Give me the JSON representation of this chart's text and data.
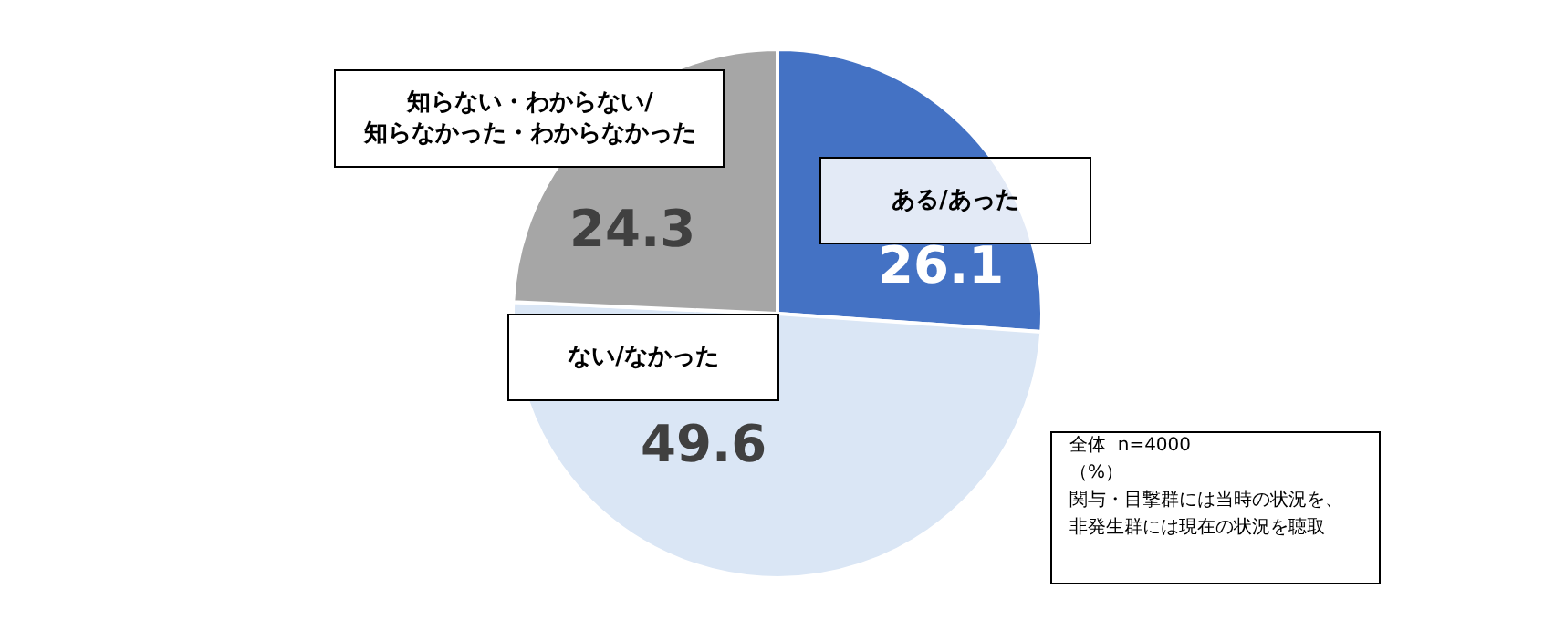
{
  "chart_data": {
    "type": "pie",
    "categories": [
      "ある/あった",
      "ない/なかった",
      "知らない・わからない/\n知らなかった・わからなかった"
    ],
    "values": [
      26.1,
      49.6,
      24.3
    ],
    "colors": [
      "#4472c4",
      "#dae6f5",
      "#a6a6a6"
    ],
    "data_labels": true,
    "legend": false,
    "annotations": [
      "全体  n=4000",
      "（%）",
      "関与・目撃群には当時の状況を、",
      "非発生群には現在の状況を聴取"
    ]
  }
}
